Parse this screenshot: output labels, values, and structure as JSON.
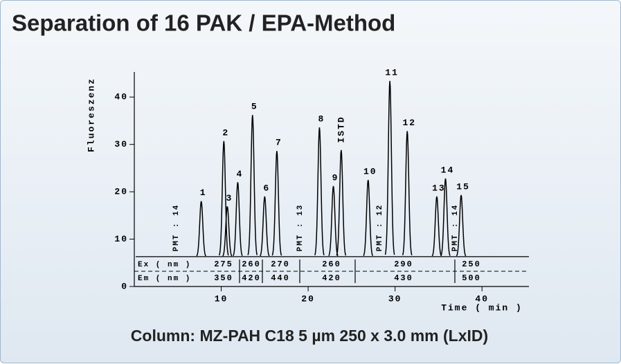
{
  "chart_data": {
    "type": "chromatogram",
    "title": "Separation of 16 PAK / EPA-Method",
    "caption": "Column: MZ-PAH C18 5 µm 250 x 3.0 mm (LxID)",
    "y_label": "Fluoreszenz",
    "x_label": "Time ( min )",
    "xlim": [
      0,
      45
    ],
    "ylim": [
      0,
      45
    ],
    "xticks": [
      10,
      20,
      30,
      40
    ],
    "yticks": [
      0,
      10,
      20,
      30,
      40
    ],
    "baseline": 6.3,
    "color": "#000000",
    "peaks": {
      "labels": [
        "1",
        "2",
        "3",
        "4",
        "5",
        "6",
        "7",
        "8",
        "9",
        "ISTD",
        "10",
        "11",
        "12",
        "13",
        "14",
        "15"
      ],
      "times": [
        7.7,
        10.3,
        10.7,
        11.9,
        13.6,
        15.0,
        16.4,
        21.3,
        22.9,
        23.8,
        26.9,
        29.4,
        31.4,
        34.8,
        35.8,
        37.6
      ],
      "heights": [
        18,
        30.7,
        16.9,
        22,
        36.2,
        19,
        28.6,
        33.6,
        21.2,
        28.8,
        22.5,
        43.4,
        32.8,
        19,
        22.8,
        19.3
      ]
    },
    "annotations": [
      "PMT : 14",
      "PMT : 13",
      "PMT : 12",
      "PMT : 14"
    ],
    "wavelengths": {
      "ex_label": "Ex ( nm )",
      "em_label": "Em ( nm )",
      "ex": [
        275,
        260,
        270,
        260,
        290,
        250
      ],
      "em": [
        350,
        420,
        440,
        420,
        430,
        500
      ]
    }
  }
}
